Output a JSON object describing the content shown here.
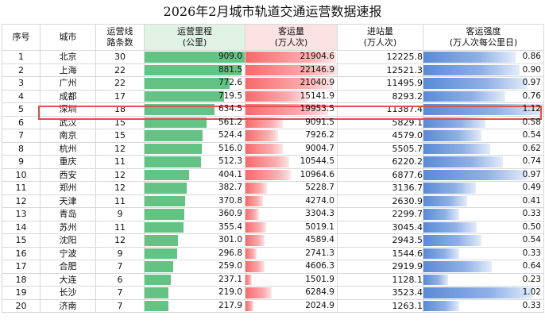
{
  "title": "2026年2月城市轨道交通运营数据速报",
  "headers": {
    "idx": "序号",
    "city": "城市",
    "lines_1": "运营线",
    "lines_2": "路条数",
    "length_1": "运营里程",
    "length_2": "(公里)",
    "ridership_1": "客运量",
    "ridership_2": "(万人次)",
    "entries_1": "进站量",
    "entries_2": "(万人次)",
    "intensity_1": "客运强度",
    "intensity_2": "(万人次每公里日)"
  },
  "highlighted_row": 5,
  "rows": [
    {
      "idx": "1",
      "city": "北京",
      "lines": "30",
      "length": "909.0",
      "ridership": "21904.6",
      "entries": "12225.8",
      "intensity": "0.86"
    },
    {
      "idx": "2",
      "city": "上海",
      "lines": "22",
      "length": "881.5",
      "ridership": "22146.9",
      "entries": "12521.3",
      "intensity": "0.90"
    },
    {
      "idx": "3",
      "city": "广州",
      "lines": "22",
      "length": "772.6",
      "ridership": "21040.9",
      "entries": "11495.9",
      "intensity": "0.97"
    },
    {
      "idx": "4",
      "city": "成都",
      "lines": "17",
      "length": "719.5",
      "ridership": "15141.9",
      "entries": "8293.2",
      "intensity": "0.76"
    },
    {
      "idx": "5",
      "city": "深圳",
      "lines": "18",
      "length": "634.5",
      "ridership": "19953.5",
      "entries": "11387.4",
      "intensity": "1.12"
    },
    {
      "idx": "6",
      "city": "武汉",
      "lines": "15",
      "length": "561.2",
      "ridership": "9091.5",
      "entries": "5829.1",
      "intensity": "0.58"
    },
    {
      "idx": "7",
      "city": "南京",
      "lines": "15",
      "length": "524.4",
      "ridership": "7926.2",
      "entries": "4579.0",
      "intensity": "0.54"
    },
    {
      "idx": "8",
      "city": "杭州",
      "lines": "12",
      "length": "516.0",
      "ridership": "9004.7",
      "entries": "5505.7",
      "intensity": "0.62"
    },
    {
      "idx": "9",
      "city": "重庆",
      "lines": "11",
      "length": "512.3",
      "ridership": "10544.5",
      "entries": "6220.2",
      "intensity": "0.74"
    },
    {
      "idx": "10",
      "city": "西安",
      "lines": "12",
      "length": "404.1",
      "ridership": "10964.6",
      "entries": "6877.6",
      "intensity": "0.97"
    },
    {
      "idx": "11",
      "city": "郑州",
      "lines": "12",
      "length": "382.7",
      "ridership": "5228.7",
      "entries": "3136.7",
      "intensity": "0.49"
    },
    {
      "idx": "12",
      "city": "天津",
      "lines": "11",
      "length": "370.8",
      "ridership": "4274.0",
      "entries": "2630.9",
      "intensity": "0.41"
    },
    {
      "idx": "13",
      "city": "青岛",
      "lines": "9",
      "length": "360.9",
      "ridership": "3304.3",
      "entries": "2299.7",
      "intensity": "0.33"
    },
    {
      "idx": "14",
      "city": "苏州",
      "lines": "11",
      "length": "355.4",
      "ridership": "5019.1",
      "entries": "3045.4",
      "intensity": "0.50"
    },
    {
      "idx": "15",
      "city": "沈阳",
      "lines": "12",
      "length": "301.0",
      "ridership": "4589.4",
      "entries": "2943.5",
      "intensity": "0.54"
    },
    {
      "idx": "16",
      "city": "宁波",
      "lines": "9",
      "length": "296.8",
      "ridership": "2741.3",
      "entries": "1544.6",
      "intensity": "0.33"
    },
    {
      "idx": "17",
      "city": "合肥",
      "lines": "7",
      "length": "259.0",
      "ridership": "4606.3",
      "entries": "2919.9",
      "intensity": "0.64"
    },
    {
      "idx": "18",
      "city": "大连",
      "lines": "6",
      "length": "237.1",
      "ridership": "1501.9",
      "entries": "1128.1",
      "intensity": "0.23"
    },
    {
      "idx": "19",
      "city": "长沙",
      "lines": "7",
      "length": "219.0",
      "ridership": "6284.9",
      "entries": "3523.4",
      "intensity": "1.02"
    },
    {
      "idx": "20",
      "city": "济南",
      "lines": "7",
      "length": "217.9",
      "ridership": "2024.9",
      "entries": "1263.1",
      "intensity": "0.33"
    }
  ],
  "colors": {
    "length_bar": "#63c384",
    "ridership_bar": "#f8696b",
    "intensity_bar": "#5a8ad6",
    "highlight_border": "#e05050"
  }
}
